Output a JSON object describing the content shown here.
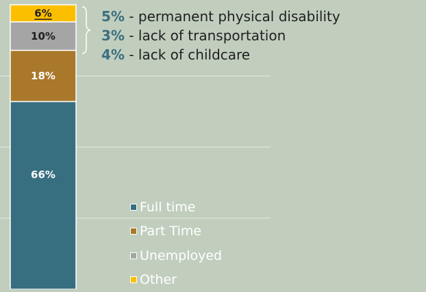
{
  "chart_data": {
    "type": "bar",
    "stacked": true,
    "categories": [
      ""
    ],
    "series": [
      {
        "name": "Full time",
        "values": [
          66
        ],
        "label": "66%",
        "color": "#376e80",
        "label_color": "#ffffff"
      },
      {
        "name": "Part Time",
        "values": [
          18
        ],
        "label": "18%",
        "color": "#a9782a",
        "label_color": "#ffffff"
      },
      {
        "name": "Unemployed",
        "values": [
          10
        ],
        "label": "10%",
        "color": "#a5a5a5",
        "label_color": "#1f1f1f"
      },
      {
        "name": "Other",
        "values": [
          6
        ],
        "label": "6%",
        "color": "#fcbf00",
        "label_color": "#1f1f1f"
      }
    ],
    "ylim": [
      0,
      100
    ],
    "grid": true,
    "legend": "bottom-right",
    "annotations": [
      {
        "pct": "5%",
        "text": " - permanent physical disability"
      },
      {
        "pct": "3%",
        "text": " - lack of transportation"
      },
      {
        "pct": "4%",
        "text": " - lack of childcare"
      }
    ]
  }
}
